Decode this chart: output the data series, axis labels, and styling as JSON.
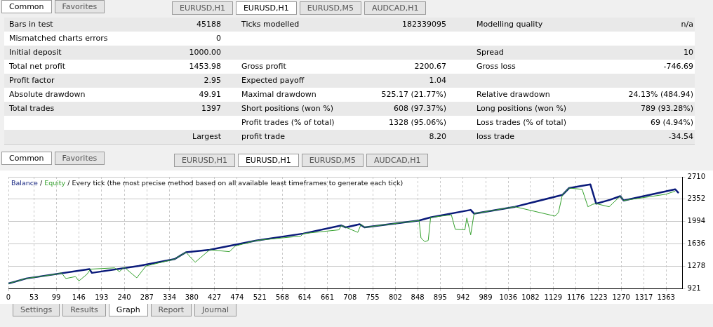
{
  "chart_data": [
    {
      "type": "other",
      "annotations": [
        "Common",
        "Favorites",
        "EURUSD,H1",
        "EURUSD,H1",
        "EURUSD,M5",
        "AUDCAD,H1"
      ],
      "categories": [
        "Bars in test",
        "Ticks modelled",
        "Modelling quality",
        "Mismatched charts errors",
        null,
        null,
        "Initial deposit",
        null,
        "Spread",
        "Total net profit",
        "Gross profit",
        "Gross loss",
        "Profit factor",
        "Expected payoff",
        null,
        "Absolute drawdown",
        "Maximal drawdown",
        "Relative drawdown",
        "Total trades",
        "Short positions (won %)",
        "Long positions (won %)",
        null,
        "Profit trades (% of total)",
        "Loss trades (% of total)",
        null,
        "profit trade",
        "loss trade"
      ],
      "value_labels": [
        "45188",
        "182339095",
        "n/a",
        "0",
        null,
        null,
        "1000.00",
        null,
        "10",
        "1453.98",
        "2200.67",
        "-746.69",
        "2.95",
        "1.04",
        null,
        "49.91",
        "525.17 (21.77%)",
        "24.13% (484.94)",
        "1397",
        "608 (97.37%)",
        "789 (93.28%)",
        null,
        "1328 (95.06%)",
        "69 (4.94%)",
        "Largest",
        "8.20",
        "-34.54"
      ]
    },
    {
      "type": "line",
      "subtitle": "Every tick (the most precise method based on all available least timeframes to generate each tick)",
      "annotations": [
        "Common",
        "Favorites",
        "EURUSD,H1",
        "EURUSD,H1",
        "EURUSD,M5",
        "AUDCAD,H1",
        "Settings",
        "Results",
        "Graph",
        "Report",
        "Journal",
        "/",
        "/"
      ],
      "legend": "top left",
      "grid": true,
      "marker": "none",
      "line_style": "solid",
      "xlim": [
        0,
        1397
      ],
      "xticks": [
        0,
        53,
        99,
        146,
        193,
        240,
        287,
        334,
        380,
        427,
        474,
        521,
        568,
        614,
        661,
        708,
        755,
        802,
        848,
        895,
        942,
        989,
        1036,
        1082,
        1129,
        1176,
        1223,
        1270,
        1317,
        1363
      ],
      "ylim": [
        921,
        2710
      ],
      "yticks": [
        921,
        1278,
        1636,
        1994,
        2352,
        2710
      ],
      "series": [
        {
          "name": "Equity",
          "color": "#33a02c",
          "x": [
            0,
            37,
            100,
            110,
            119,
            139,
            146,
            163,
            170,
            220,
            230,
            240,
            266,
            285,
            344,
            368,
            387,
            417,
            458,
            470,
            514,
            606,
            611,
            685,
            690,
            721,
            724,
            731,
            738,
            851,
            855,
            863,
            870,
            875,
            918,
            926,
            946,
            950,
            958,
            965,
            1050,
            1133,
            1140,
            1148,
            1162,
            1189,
            1201,
            1211,
            1218,
            1245,
            1268,
            1275,
            1362,
            1382
          ],
          "values": [
            1000,
            1080,
            1150,
            1170,
            1080,
            1110,
            1040,
            1150,
            1230,
            1250,
            1190,
            1260,
            1090,
            1280,
            1390,
            1500,
            1340,
            1540,
            1510,
            1600,
            1690,
            1760,
            1800,
            1860,
            1930,
            1830,
            1820,
            1950,
            1900,
            2010,
            1730,
            1670,
            1690,
            2060,
            2100,
            1870,
            1860,
            2050,
            1780,
            2120,
            2230,
            2080,
            2140,
            2420,
            2530,
            2510,
            2230,
            2270,
            2280,
            2230,
            2400,
            2330,
            2430,
            2480
          ]
        },
        {
          "name": "Balance",
          "color": "#0a1a7a",
          "x": [
            0,
            37,
            168,
            173,
            270,
            344,
            368,
            417,
            514,
            611,
            690,
            699,
            728,
            738,
            851,
            875,
            958,
            965,
            1050,
            1148,
            1162,
            1206,
            1218,
            1246,
            1268,
            1275,
            1382,
            1389
          ],
          "values": [
            1000,
            1080,
            1230,
            1170,
            1280,
            1390,
            1500,
            1540,
            1690,
            1800,
            1930,
            1900,
            1950,
            1900,
            2010,
            2060,
            2180,
            2120,
            2230,
            2420,
            2530,
            2590,
            2280,
            2340,
            2400,
            2330,
            2510,
            2450
          ]
        }
      ]
    }
  ]
}
